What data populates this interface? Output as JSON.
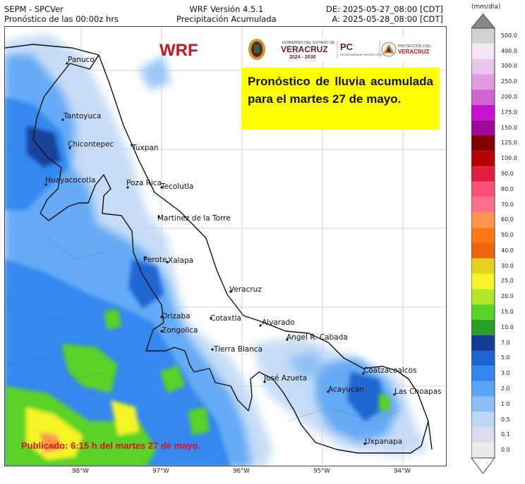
{
  "header": {
    "left_line1": "SEPM - SPCVer",
    "left_line2": "Pronóstico de las 00:00z hrs",
    "center_line1": "WRF Versión 4.5.1",
    "center_line2": "Precipitación Acumulada",
    "right_line1": "DE: 2025-05-27_08:00 [CDT]",
    "right_line2": "A: 2025-05-28_08:00 [CDT]"
  },
  "model_label": "WRF",
  "logos": {
    "gov_line1": "GOBIERNO DEL ESTADO DE",
    "gov_line2": "VERACRUZ",
    "gov_line3": "2024 - 2030",
    "pc_short": "PC",
    "pc_sub": "SECRETARÍA DE PROTECCIÓN CIVIL",
    "pc_right1": "PROTECCIÓN CIVIL",
    "pc_right2": "VERACRUZ"
  },
  "forecast_note": "Pronóstico de lluvia acumulada para el martes 27 de mayo.",
  "published_note": "Publicado: 6:15 h del martes 27 de mayo.",
  "cities": [
    {
      "name": "Panuco"
    },
    {
      "name": "Tantoyuca"
    },
    {
      "name": "Chicontepec"
    },
    {
      "name": "Tuxpan"
    },
    {
      "name": "Huayacocotla"
    },
    {
      "name": "Poza Rica"
    },
    {
      "name": "Tecolutla"
    },
    {
      "name": "Martinez de la Torre"
    },
    {
      "name": "Perote"
    },
    {
      "name": "Xalapa"
    },
    {
      "name": "Veracruz"
    },
    {
      "name": "Orizaba"
    },
    {
      "name": "Cotaxtla"
    },
    {
      "name": "Alvarado"
    },
    {
      "name": "Zongolica"
    },
    {
      "name": "Angel R. Cabada"
    },
    {
      "name": "Tierra Blanca"
    },
    {
      "name": "Coatzacoalcos"
    },
    {
      "name": "José Azueta"
    },
    {
      "name": "Acayucan"
    },
    {
      "name": "Las Choapas"
    },
    {
      "name": "Uxpanapa"
    }
  ],
  "longitudes": [
    "98°W",
    "97°W",
    "96°W",
    "95°W",
    "94°W"
  ],
  "colorbar": {
    "unit": "(mm/día)",
    "levels": [
      "500.0",
      "400.0",
      "300.0",
      "250.0",
      "200.0",
      "175.0",
      "150.0",
      "125.0",
      "100.0",
      "90.0",
      "80.0",
      "70.0",
      "60.0",
      "50.0",
      "40.0",
      "30.0",
      "25.0",
      "20.0",
      "15.0",
      "10.0",
      "7.0",
      "5.0",
      "3.0",
      "2.0",
      "1.0",
      "0.5",
      "0.1",
      "0.0"
    ],
    "colors": [
      "#d2d2d2",
      "#f5e6f5",
      "#ebc3eb",
      "#e19be1",
      "#d264d2",
      "#c814d2",
      "#a00a96",
      "#820000",
      "#b40000",
      "#e11e3c",
      "#ff5078",
      "#ff6e8c",
      "#ff9650",
      "#ff7814",
      "#f0640a",
      "#e6d21e",
      "#f5f528",
      "#b4e628",
      "#5ad228",
      "#28a028",
      "#143c96",
      "#1e64d2",
      "#3287f0",
      "#5aa5f5",
      "#8cbef5",
      "#bed7f5",
      "#dcdcf0",
      "#ebebeb"
    ]
  }
}
